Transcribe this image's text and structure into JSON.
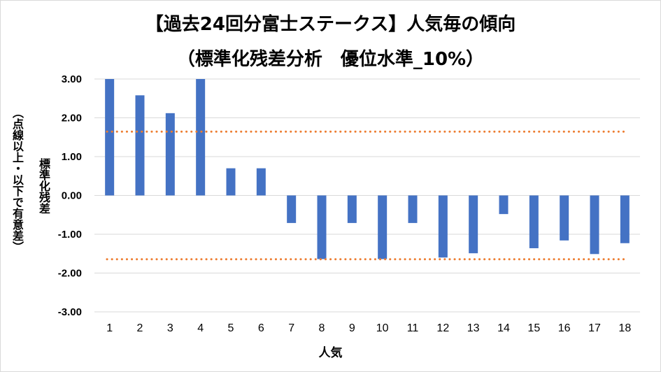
{
  "chart_data": {
    "type": "bar",
    "title": "【過去24回分富士ステークス】人気毎の傾向",
    "subtitle": "（標準化残差分析　優位水準_10%）",
    "xlabel": "人気",
    "ylabel": "標準化残差",
    "ylabel2": "（点線以上・以下で有意差）",
    "categories": [
      "1",
      "2",
      "3",
      "4",
      "5",
      "6",
      "7",
      "8",
      "9",
      "10",
      "11",
      "12",
      "13",
      "14",
      "15",
      "16",
      "17",
      "18"
    ],
    "series": [
      {
        "values": [
          3.0,
          2.58,
          2.12,
          3.0,
          0.7,
          0.7,
          -0.71,
          -1.64,
          -0.71,
          -1.64,
          -0.71,
          -1.6,
          -1.49,
          -0.48,
          -1.36,
          -1.16,
          -1.51,
          -1.23
        ],
        "color": "#4472c4"
      }
    ],
    "ylim": [
      -3.0,
      3.0
    ],
    "yticks": [
      "3.00",
      "2.00",
      "1.00",
      "0.00",
      "-1.00",
      "-2.00",
      "-3.00"
    ],
    "threshold_lines": [
      1.645,
      -1.645
    ],
    "threshold_color": "#ed7d31",
    "grid": true
  }
}
